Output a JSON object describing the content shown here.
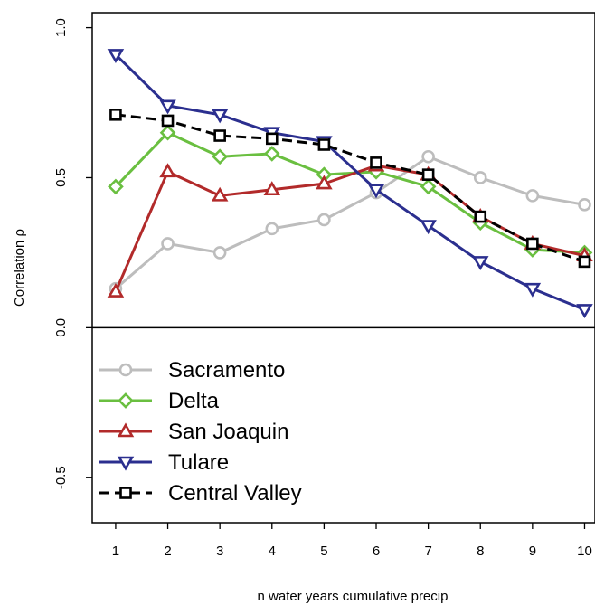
{
  "chart_data": {
    "type": "line",
    "xlabel": "n water years cumulative precip",
    "ylabel": "Correlation  ρ",
    "xlim": [
      0.55,
      10.2
    ],
    "ylim": [
      -0.65,
      1.05
    ],
    "x": [
      1,
      2,
      3,
      4,
      5,
      6,
      7,
      8,
      9,
      10
    ],
    "xticks": [
      "1",
      "2",
      "3",
      "4",
      "5",
      "6",
      "7",
      "8",
      "9",
      "10"
    ],
    "yticks": [
      {
        "value": -0.5,
        "label": "-0.5"
      },
      {
        "value": 0.0,
        "label": "0.0"
      },
      {
        "value": 0.5,
        "label": "0.5"
      },
      {
        "value": 1.0,
        "label": "1.0"
      }
    ],
    "zero_line": 0.0,
    "legend_position": "bottom-left",
    "series": [
      {
        "name": "Sacramento",
        "color": "#bdbdbd",
        "marker": "circle",
        "dash": "solid",
        "values": [
          0.13,
          0.28,
          0.25,
          0.33,
          0.36,
          0.45,
          0.57,
          0.5,
          0.44,
          0.41
        ]
      },
      {
        "name": "Delta",
        "color": "#6abf40",
        "marker": "diamond",
        "dash": "solid",
        "values": [
          0.47,
          0.65,
          0.57,
          0.58,
          0.51,
          0.52,
          0.47,
          0.35,
          0.26,
          0.25
        ]
      },
      {
        "name": "San Joaquin",
        "color": "#b22a2a",
        "marker": "triangle-up",
        "dash": "solid",
        "values": [
          0.12,
          0.52,
          0.44,
          0.46,
          0.48,
          0.54,
          0.51,
          0.37,
          0.28,
          0.24
        ]
      },
      {
        "name": "Tulare",
        "color": "#2b2f8f",
        "marker": "triangle-down",
        "dash": "solid",
        "values": [
          0.91,
          0.74,
          0.71,
          0.65,
          0.62,
          0.46,
          0.34,
          0.22,
          0.13,
          0.06
        ]
      },
      {
        "name": "Central Valley",
        "color": "#000000",
        "marker": "square",
        "dash": "dashed",
        "values": [
          0.71,
          0.69,
          0.64,
          0.63,
          0.61,
          0.55,
          0.51,
          0.37,
          0.28,
          0.22
        ]
      }
    ]
  }
}
